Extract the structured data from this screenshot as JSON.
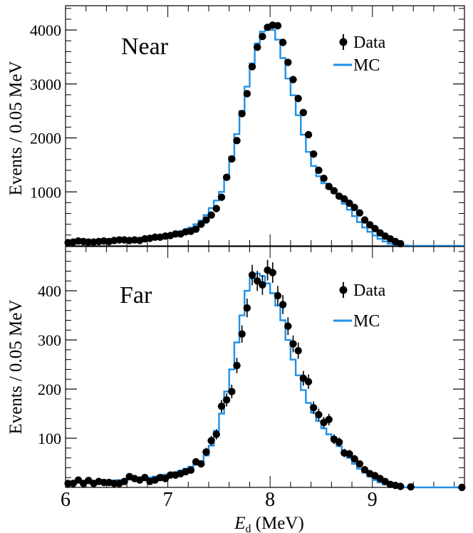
{
  "colors": {
    "data": "#000000",
    "mc": "#1e90e8",
    "axis": "#000000"
  },
  "xaxis": {
    "label_main": "E",
    "label_sub": "d",
    "label_unit": " (MeV)",
    "ticks": [
      "6",
      "7",
      "8",
      "9"
    ],
    "range": [
      6.0,
      9.9
    ]
  },
  "chart_data": [
    {
      "type": "line",
      "panel": "Near",
      "title": "Near",
      "ylabel": "Events / 0.05 MeV",
      "ylim": [
        0,
        4450
      ],
      "yticks": [
        1000,
        2000,
        3000,
        4000
      ],
      "ytick_labels": [
        "1000",
        "2000",
        "3000",
        "4000"
      ],
      "legend": {
        "position": "top-right",
        "entries": [
          "Data",
          "MC"
        ]
      },
      "series": [
        {
          "name": "Data",
          "marker": "point-with-error",
          "x": [
            6.025,
            6.075,
            6.125,
            6.175,
            6.225,
            6.275,
            6.325,
            6.375,
            6.425,
            6.475,
            6.525,
            6.575,
            6.625,
            6.675,
            6.725,
            6.775,
            6.825,
            6.875,
            6.925,
            6.975,
            7.025,
            7.075,
            7.125,
            7.175,
            7.225,
            7.275,
            7.325,
            7.375,
            7.425,
            7.475,
            7.525,
            7.575,
            7.625,
            7.675,
            7.725,
            7.775,
            7.825,
            7.875,
            7.925,
            7.975,
            8.025,
            8.075,
            8.125,
            8.175,
            8.225,
            8.275,
            8.325,
            8.375,
            8.425,
            8.475,
            8.525,
            8.575,
            8.625,
            8.675,
            8.725,
            8.775,
            8.825,
            8.875,
            8.925,
            8.975,
            9.025,
            9.075,
            9.125,
            9.175,
            9.225,
            9.275
          ],
          "y": [
            60,
            70,
            90,
            80,
            70,
            70,
            80,
            90,
            80,
            100,
            110,
            110,
            100,
            110,
            100,
            130,
            140,
            160,
            160,
            180,
            190,
            220,
            220,
            260,
            270,
            310,
            400,
            480,
            570,
            690,
            900,
            1270,
            1610,
            1950,
            2450,
            2820,
            3320,
            3680,
            3880,
            4050,
            4090,
            4080,
            3770,
            3400,
            3080,
            2730,
            2470,
            2060,
            1700,
            1400,
            1250,
            1100,
            1020,
            920,
            870,
            790,
            710,
            610,
            480,
            390,
            320,
            240,
            180,
            130,
            80,
            40
          ]
        },
        {
          "name": "MC",
          "kind": "step",
          "x": [
            6.025,
            6.075,
            6.125,
            6.175,
            6.225,
            6.275,
            6.325,
            6.375,
            6.425,
            6.475,
            6.525,
            6.575,
            6.625,
            6.675,
            6.725,
            6.775,
            6.825,
            6.875,
            6.925,
            6.975,
            7.025,
            7.075,
            7.125,
            7.175,
            7.225,
            7.275,
            7.325,
            7.375,
            7.425,
            7.475,
            7.525,
            7.575,
            7.625,
            7.675,
            7.725,
            7.775,
            7.825,
            7.875,
            7.925,
            7.975,
            8.025,
            8.075,
            8.125,
            8.175,
            8.225,
            8.275,
            8.325,
            8.375,
            8.425,
            8.475,
            8.525,
            8.575,
            8.625,
            8.675,
            8.725,
            8.775,
            8.825,
            8.875,
            8.925,
            8.975,
            9.025,
            9.075,
            9.125,
            9.175,
            9.225,
            9.275,
            9.325,
            9.375,
            9.425,
            9.475,
            9.525,
            9.575,
            9.625,
            9.675,
            9.725,
            9.775,
            9.825,
            9.875
          ],
          "y": [
            70,
            75,
            80,
            80,
            80,
            85,
            90,
            95,
            95,
            105,
            110,
            115,
            115,
            120,
            125,
            135,
            145,
            160,
            170,
            185,
            205,
            235,
            265,
            300,
            340,
            400,
            470,
            570,
            700,
            840,
            1000,
            1270,
            1650,
            2070,
            2500,
            2950,
            3380,
            3750,
            3970,
            4020,
            4000,
            3820,
            3480,
            3100,
            2790,
            2420,
            2060,
            1740,
            1480,
            1290,
            1160,
            1060,
            980,
            890,
            780,
            670,
            550,
            440,
            340,
            260,
            190,
            130,
            80,
            40,
            20,
            10,
            5,
            0,
            0,
            0,
            0,
            0,
            0,
            0,
            0,
            0,
            0,
            0
          ]
        }
      ]
    },
    {
      "type": "line",
      "panel": "Far",
      "title": "Far",
      "ylabel": "Events / 0.05 MeV",
      "ylim": [
        0,
        490
      ],
      "yticks": [
        100,
        200,
        300,
        400
      ],
      "ytick_labels": [
        "100",
        "200",
        "300",
        "400"
      ],
      "legend": {
        "position": "top-right",
        "entries": [
          "Data",
          "MC"
        ]
      },
      "series": [
        {
          "name": "Data",
          "marker": "point-with-error",
          "x": [
            6.025,
            6.075,
            6.125,
            6.175,
            6.225,
            6.275,
            6.325,
            6.375,
            6.425,
            6.475,
            6.525,
            6.575,
            6.625,
            6.675,
            6.725,
            6.775,
            6.825,
            6.875,
            6.925,
            6.975,
            7.025,
            7.075,
            7.125,
            7.175,
            7.225,
            7.275,
            7.325,
            7.375,
            7.425,
            7.475,
            7.525,
            7.575,
            7.625,
            7.675,
            7.725,
            7.775,
            7.825,
            7.875,
            7.925,
            7.975,
            8.025,
            8.075,
            8.125,
            8.175,
            8.225,
            8.275,
            8.325,
            8.375,
            8.425,
            8.475,
            8.525,
            8.575,
            8.625,
            8.675,
            8.725,
            8.775,
            8.825,
            8.875,
            8.925,
            8.975,
            9.025,
            9.075,
            9.125,
            9.175,
            9.225,
            9.275,
            9.375,
            9.875
          ],
          "y": [
            8,
            8,
            15,
            8,
            14,
            8,
            12,
            10,
            10,
            8,
            8,
            12,
            22,
            18,
            15,
            20,
            12,
            15,
            20,
            18,
            25,
            25,
            28,
            32,
            35,
            52,
            48,
            72,
            95,
            108,
            165,
            178,
            195,
            248,
            312,
            365,
            432,
            420,
            412,
            442,
            437,
            390,
            372,
            328,
            292,
            278,
            222,
            215,
            162,
            148,
            132,
            138,
            98,
            92,
            70,
            68,
            58,
            48,
            36,
            28,
            24,
            18,
            12,
            6,
            4,
            2,
            1,
            0
          ]
        },
        {
          "name": "MC",
          "kind": "step",
          "x": [
            6.025,
            6.075,
            6.125,
            6.175,
            6.225,
            6.275,
            6.325,
            6.375,
            6.425,
            6.475,
            6.525,
            6.575,
            6.625,
            6.675,
            6.725,
            6.775,
            6.825,
            6.875,
            6.925,
            6.975,
            7.025,
            7.075,
            7.125,
            7.175,
            7.225,
            7.275,
            7.325,
            7.375,
            7.425,
            7.475,
            7.525,
            7.575,
            7.625,
            7.675,
            7.725,
            7.775,
            7.825,
            7.875,
            7.925,
            7.975,
            8.025,
            8.075,
            8.125,
            8.175,
            8.225,
            8.275,
            8.325,
            8.375,
            8.425,
            8.475,
            8.525,
            8.575,
            8.625,
            8.675,
            8.725,
            8.775,
            8.825,
            8.875,
            8.925,
            8.975,
            9.025,
            9.075,
            9.125,
            9.175,
            9.225,
            9.275,
            9.325,
            9.375,
            9.425,
            9.475,
            9.525,
            9.575,
            9.625,
            9.675,
            9.725,
            9.775,
            9.825,
            9.875
          ],
          "y": [
            10,
            10,
            11,
            11,
            12,
            12,
            13,
            13,
            14,
            14,
            15,
            15,
            16,
            17,
            18,
            19,
            20,
            22,
            24,
            26,
            28,
            31,
            34,
            38,
            42,
            47,
            53,
            65,
            85,
            115,
            150,
            195,
            240,
            295,
            350,
            400,
            425,
            435,
            430,
            415,
            395,
            370,
            340,
            300,
            260,
            228,
            198,
            172,
            152,
            135,
            120,
            108,
            96,
            84,
            72,
            60,
            48,
            38,
            30,
            22,
            15,
            10,
            6,
            3,
            1,
            0,
            0,
            0,
            0,
            0,
            0,
            0,
            0,
            0,
            0,
            0,
            0,
            0
          ]
        }
      ]
    }
  ]
}
